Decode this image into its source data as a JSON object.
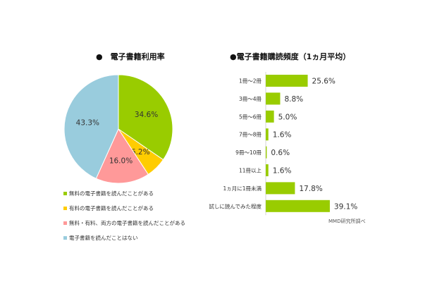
{
  "chart_data": [
    {
      "type": "pie",
      "title": "●　電子書籍利用率",
      "slices": [
        {
          "label": "無料の電子書籍を読んだことがある",
          "value": 34.6,
          "value_label": "34.6%",
          "color": "#99cc00"
        },
        {
          "label": "有料の電子書籍を読んだことがある",
          "value": 6.2,
          "value_label": "6.2%",
          "color": "#ffcc00"
        },
        {
          "label": "無料・有料、両方の電子書籍を読んだことがある",
          "value": 16.0,
          "value_label": "16.0%",
          "color": "#ff9999"
        },
        {
          "label": "電子書籍を読んだことはない",
          "value": 43.3,
          "value_label": "43.3%",
          "color": "#99ccdd"
        }
      ],
      "legend_position": "bottom"
    },
    {
      "type": "bar",
      "orientation": "horizontal",
      "title": "●電子書籍購読頻度（1ヵ月平均）",
      "categories": [
        "1冊～2冊",
        "3冊～4冊",
        "5冊～6冊",
        "7冊～8冊",
        "9冊～10冊",
        "11冊以上",
        "1ヵ月に1冊未満",
        "試しに読んでみた程度"
      ],
      "values": [
        25.6,
        8.8,
        5.0,
        1.6,
        0.6,
        1.6,
        17.8,
        39.1
      ],
      "value_labels": [
        "25.6%",
        "8.8%",
        "5.0%",
        "1.6%",
        "0.6%",
        "1.6%",
        "17.8%",
        "39.1%"
      ],
      "color": "#99cc00",
      "xlim": [
        0,
        40
      ],
      "grid": false
    }
  ],
  "source_note": "MMD研究所調べ"
}
